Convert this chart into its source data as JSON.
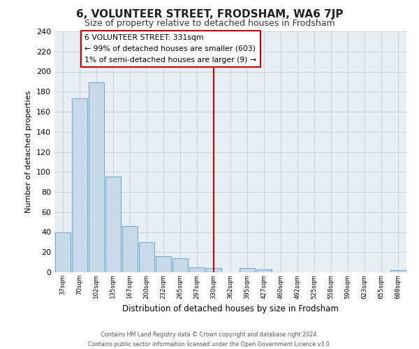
{
  "title": "6, VOLUNTEER STREET, FRODSHAM, WA6 7JP",
  "subtitle": "Size of property relative to detached houses in Frodsham",
  "xlabel": "Distribution of detached houses by size in Frodsham",
  "ylabel": "Number of detached properties",
  "bin_labels": [
    "37sqm",
    "70sqm",
    "102sqm",
    "135sqm",
    "167sqm",
    "200sqm",
    "232sqm",
    "265sqm",
    "297sqm",
    "330sqm",
    "362sqm",
    "395sqm",
    "427sqm",
    "460sqm",
    "492sqm",
    "525sqm",
    "558sqm",
    "590sqm",
    "623sqm",
    "655sqm",
    "688sqm"
  ],
  "bar_heights": [
    40,
    173,
    189,
    95,
    46,
    30,
    16,
    14,
    5,
    4,
    0,
    4,
    3,
    0,
    0,
    0,
    0,
    0,
    0,
    0,
    2
  ],
  "bar_color": "#c8daea",
  "bar_edge_color": "#6aaed6",
  "vline_color": "#cc0000",
  "ylim": [
    0,
    240
  ],
  "yticks": [
    0,
    20,
    40,
    60,
    80,
    100,
    120,
    140,
    160,
    180,
    200,
    220,
    240
  ],
  "annotation_title": "6 VOLUNTEER STREET: 331sqm",
  "annotation_line1": "← 99% of detached houses are smaller (603)",
  "annotation_line2": "1% of semi-detached houses are larger (9) →",
  "annotation_box_color": "#ffffff",
  "annotation_box_edge": "#cc0000",
  "footer_line1": "Contains HM Land Registry data © Crown copyright and database right 2024.",
  "footer_line2": "Contains public sector information licensed under the Open Government Licence v3.0.",
  "background_color": "#ffffff",
  "plot_bg_color": "#e8eef4",
  "grid_color": "#c8d0d8",
  "title_fontsize": 11,
  "subtitle_fontsize": 9
}
